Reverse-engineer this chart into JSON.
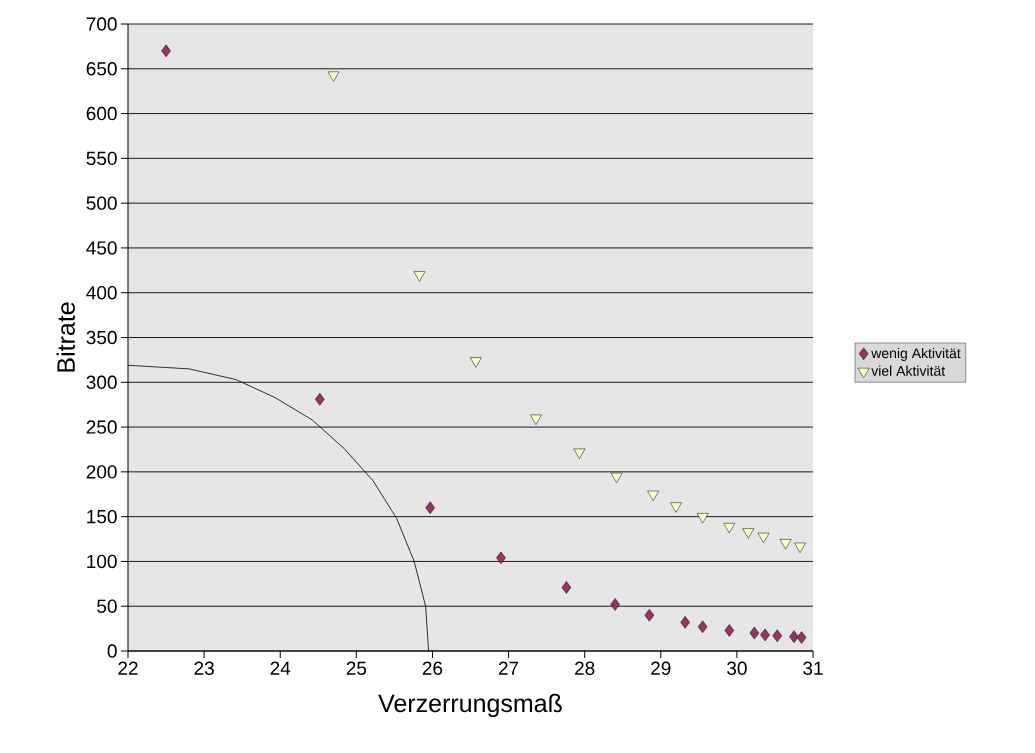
{
  "chart_data": {
    "type": "scatter",
    "xlabel": "Verzerrungsmaß",
    "ylabel": "Bitrate",
    "xlim": [
      22,
      31
    ],
    "xticks": [
      22,
      23,
      24,
      25,
      26,
      27,
      28,
      29,
      30,
      31
    ],
    "ylim": [
      0,
      700
    ],
    "yticks": [
      0,
      50,
      100,
      150,
      200,
      250,
      300,
      350,
      400,
      450,
      500,
      550,
      600,
      650,
      700
    ],
    "grid": "y",
    "legend": "right",
    "series": [
      {
        "name": "wenig Aktivität",
        "marker": "diamond",
        "color": "#993366",
        "x": [
          22.5,
          24.52,
          25.97,
          26.9,
          27.76,
          28.4,
          28.85,
          29.32,
          29.55,
          29.9,
          30.23,
          30.37,
          30.53,
          30.75,
          30.85
        ],
        "values": [
          670,
          281,
          160,
          104,
          71,
          52,
          40,
          32,
          27,
          23,
          20,
          18,
          17,
          16,
          15
        ]
      },
      {
        "name": "viel Aktivität",
        "marker": "triangle",
        "color": "#ffffcc",
        "x": [
          24.7,
          25.83,
          26.57,
          27.36,
          27.93,
          28.42,
          28.9,
          29.2,
          29.55,
          29.9,
          30.15,
          30.35,
          30.64,
          30.83
        ],
        "values": [
          643,
          420,
          324,
          260,
          222,
          195,
          175,
          162,
          150,
          139,
          133,
          128,
          121,
          117
        ]
      },
      {
        "type": "line",
        "marker": "none",
        "color": "#000000",
        "x": [
          22,
          22.8,
          23.42,
          23.93,
          24.42,
          24.84,
          25.22,
          25.53,
          25.76,
          25.91,
          25.95
        ],
        "values": [
          319,
          315,
          303,
          283,
          258,
          226,
          190,
          148,
          100,
          50,
          0
        ]
      }
    ]
  }
}
